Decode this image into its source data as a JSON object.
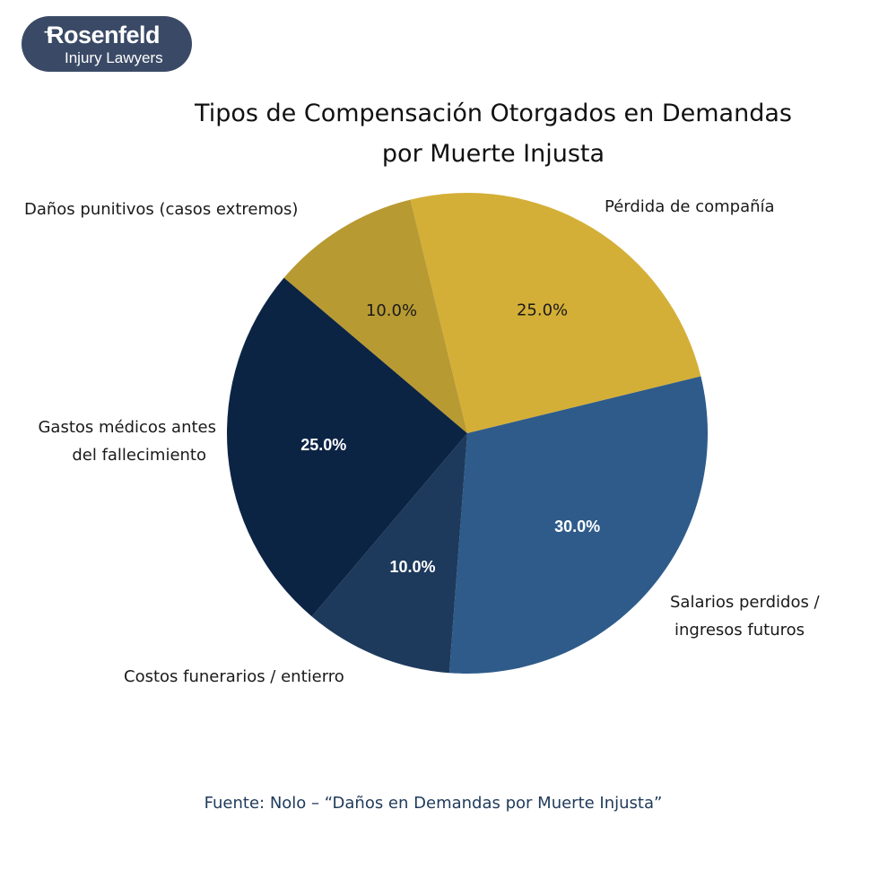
{
  "logo": {
    "name": "Rosenfeld",
    "tagline": "Injury Lawyers"
  },
  "header": {
    "title_line1": "Tipos de Compensación Otorgados en Demandas",
    "title_line2": "por Muerte Injusta"
  },
  "footer": {
    "source": "Fuente: Nolo – “Daños en Demandas por Muerte Injusta”"
  },
  "labels": {
    "perdida": "Pérdida de compañía",
    "salarios_1": "Salarios perdidos /",
    "salarios_2": "ingresos futuros",
    "costos": "Costos funerarios / entierro",
    "gastos_1": "Gastos médicos antes",
    "gastos_2": "del fallecimiento",
    "danos": "Daños punitivos (casos extremos)"
  },
  "pct": {
    "perdida": "25.0%",
    "salarios": "30.0%",
    "costos": "10.0%",
    "gastos": "25.0%",
    "danos": "10.0%"
  },
  "chart_data": {
    "type": "pie",
    "title": "Tipos de Compensación Otorgados en Demandas por Muerte Injusta",
    "categories": [
      "Pérdida de compañía",
      "Salarios perdidos / ingresos futuros",
      "Costos funerarios / entierro",
      "Gastos médicos antes del fallecimiento",
      "Daños punitivos (casos extremos)"
    ],
    "values": [
      25,
      30,
      10,
      25,
      10
    ],
    "value_labels": [
      "25.0%",
      "30.0%",
      "10.0%",
      "25.0%",
      "10.0%"
    ],
    "colors": [
      "#d4af37",
      "#2e5b8a",
      "#1d3a5c",
      "#0c2444",
      "#b89a32"
    ],
    "start_angle_deg": 103.7,
    "direction": "clockwise",
    "source": "Fuente: Nolo – “Daños en Demandas por Muerte Injusta”"
  }
}
